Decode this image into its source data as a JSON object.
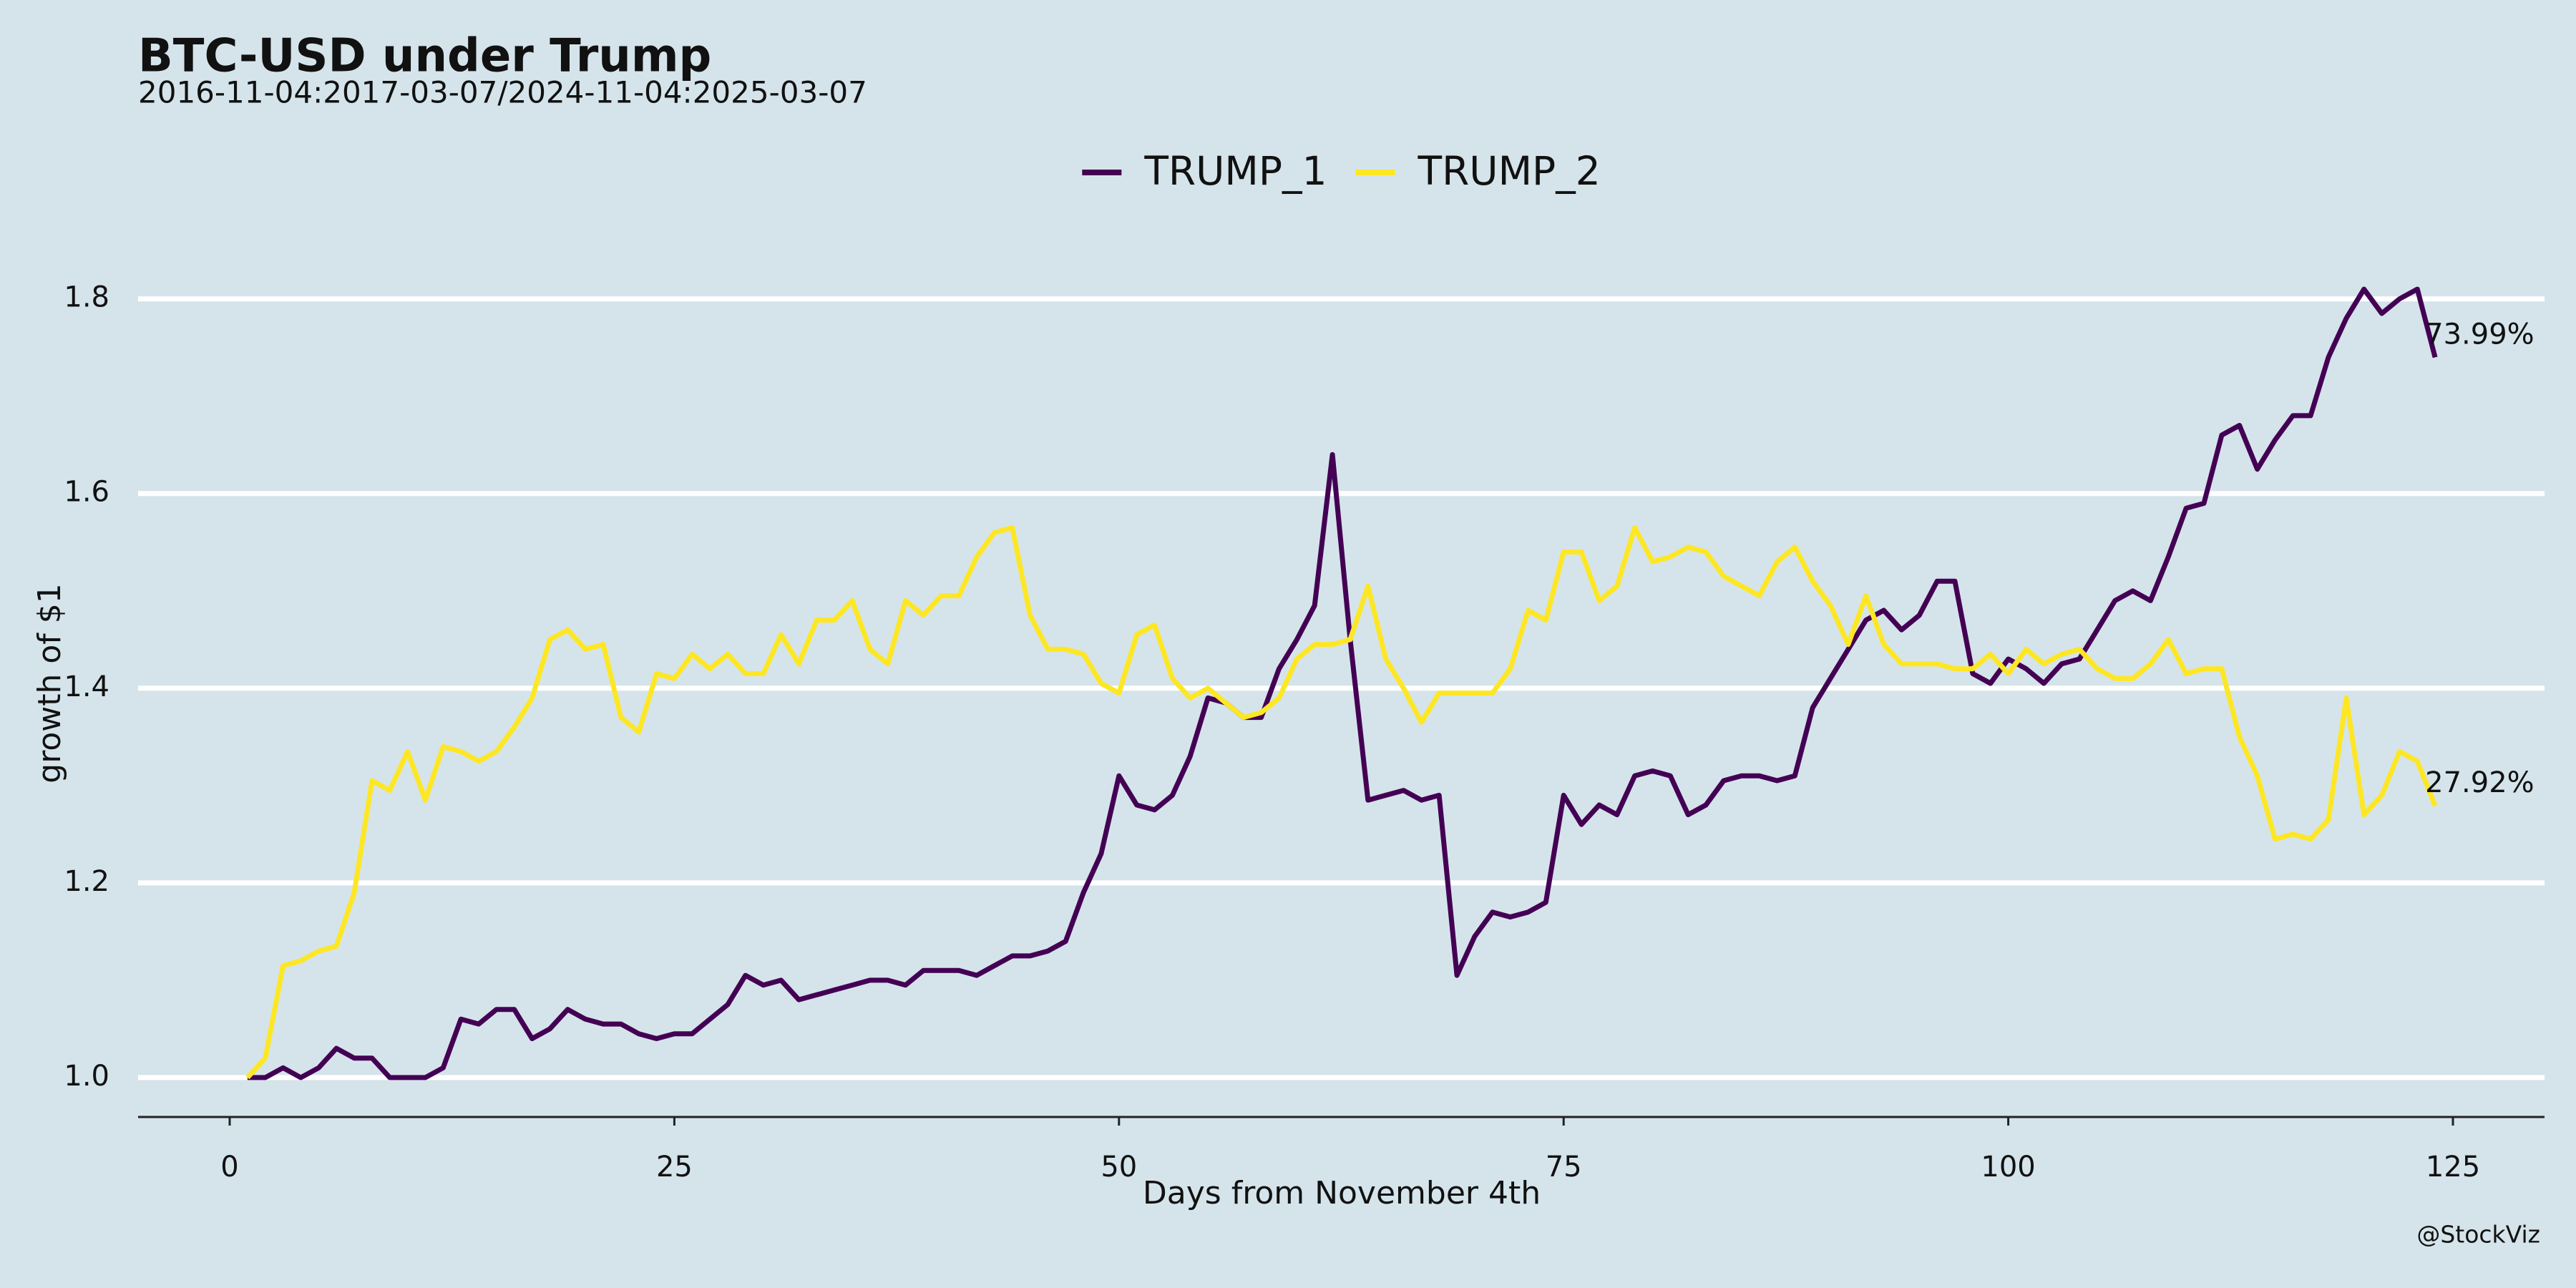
{
  "chart_data": {
    "type": "line",
    "title": "BTC-USD under Trump",
    "subtitle": "2016-11-04:2017-03-07/2024-11-04:2025-03-07",
    "x_label": "Days from November 4th",
    "y_label": "growth of $1",
    "caption": "@StockViz",
    "legend_position": "top",
    "grid": true,
    "x": [
      1,
      2,
      3,
      4,
      5,
      6,
      7,
      8,
      9,
      10,
      11,
      12,
      13,
      14,
      15,
      16,
      17,
      18,
      19,
      20,
      21,
      22,
      23,
      24,
      25,
      26,
      27,
      28,
      29,
      30,
      31,
      32,
      33,
      34,
      35,
      36,
      37,
      38,
      39,
      40,
      41,
      42,
      43,
      44,
      45,
      46,
      47,
      48,
      49,
      50,
      51,
      52,
      53,
      54,
      55,
      56,
      57,
      58,
      59,
      60,
      61,
      62,
      63,
      64,
      65,
      66,
      67,
      68,
      69,
      70,
      71,
      72,
      73,
      74,
      75,
      76,
      77,
      78,
      79,
      80,
      81,
      82,
      83,
      84,
      85,
      86,
      87,
      88,
      89,
      90,
      91,
      92,
      93,
      94,
      95,
      96,
      97,
      98,
      99,
      100,
      101,
      102,
      103,
      104,
      105,
      106,
      107,
      108,
      109,
      110,
      111,
      112,
      113,
      114,
      115,
      116,
      117,
      118,
      119,
      120,
      121,
      122,
      123,
      124
    ],
    "series": [
      {
        "name": "TRUMP_1",
        "color": "#440154",
        "end_label": "73.99%",
        "values": [
          1.0,
          1.0,
          1.01,
          1.0,
          1.01,
          1.03,
          1.02,
          1.02,
          1.0,
          1.0,
          1.0,
          1.01,
          1.06,
          1.055,
          1.07,
          1.07,
          1.04,
          1.05,
          1.07,
          1.06,
          1.055,
          1.055,
          1.045,
          1.04,
          1.045,
          1.045,
          1.06,
          1.075,
          1.105,
          1.095,
          1.1,
          1.08,
          1.085,
          1.09,
          1.095,
          1.1,
          1.1,
          1.095,
          1.11,
          1.11,
          1.11,
          1.105,
          1.115,
          1.125,
          1.125,
          1.13,
          1.14,
          1.19,
          1.23,
          1.31,
          1.28,
          1.275,
          1.29,
          1.33,
          1.39,
          1.385,
          1.37,
          1.37,
          1.42,
          1.45,
          1.485,
          1.64,
          1.45,
          1.285,
          1.29,
          1.295,
          1.285,
          1.29,
          1.105,
          1.145,
          1.17,
          1.165,
          1.17,
          1.18,
          1.29,
          1.26,
          1.28,
          1.27,
          1.31,
          1.315,
          1.31,
          1.27,
          1.28,
          1.305,
          1.31,
          1.31,
          1.305,
          1.31,
          1.38,
          1.41,
          1.44,
          1.47,
          1.48,
          1.46,
          1.475,
          1.51,
          1.51,
          1.415,
          1.405,
          1.43,
          1.42,
          1.405,
          1.425,
          1.43,
          1.46,
          1.49,
          1.5,
          1.49,
          1.535,
          1.585,
          1.59,
          1.66,
          1.67,
          1.625,
          1.655,
          1.68,
          1.68,
          1.74,
          1.78,
          1.81,
          1.785,
          1.8,
          1.81,
          1.7399
        ]
      },
      {
        "name": "TRUMP_2",
        "color": "#FDE725",
        "end_label": "27.92%",
        "values": [
          1.0,
          1.02,
          1.115,
          1.12,
          1.13,
          1.135,
          1.19,
          1.305,
          1.295,
          1.335,
          1.285,
          1.34,
          1.335,
          1.325,
          1.335,
          1.36,
          1.39,
          1.45,
          1.46,
          1.44,
          1.445,
          1.37,
          1.355,
          1.415,
          1.41,
          1.435,
          1.42,
          1.435,
          1.415,
          1.415,
          1.455,
          1.425,
          1.47,
          1.47,
          1.49,
          1.44,
          1.425,
          1.49,
          1.475,
          1.495,
          1.495,
          1.535,
          1.56,
          1.565,
          1.475,
          1.44,
          1.44,
          1.435,
          1.405,
          1.395,
          1.455,
          1.465,
          1.41,
          1.39,
          1.4,
          1.385,
          1.37,
          1.375,
          1.39,
          1.43,
          1.445,
          1.445,
          1.45,
          1.505,
          1.43,
          1.4,
          1.365,
          1.395,
          1.395,
          1.395,
          1.395,
          1.42,
          1.48,
          1.47,
          1.54,
          1.54,
          1.49,
          1.505,
          1.565,
          1.53,
          1.535,
          1.545,
          1.54,
          1.515,
          1.505,
          1.495,
          1.53,
          1.545,
          1.51,
          1.485,
          1.445,
          1.495,
          1.445,
          1.425,
          1.425,
          1.425,
          1.42,
          1.42,
          1.435,
          1.415,
          1.44,
          1.425,
          1.435,
          1.44,
          1.42,
          1.41,
          1.41,
          1.425,
          1.45,
          1.415,
          1.42,
          1.42,
          1.35,
          1.31,
          1.245,
          1.25,
          1.245,
          1.265,
          1.39,
          1.27,
          1.29,
          1.335,
          1.325,
          1.2792
        ]
      }
    ],
    "xlim": [
      -5.15,
      130.15
    ],
    "xticks": [
      0,
      25,
      50,
      75,
      100,
      125
    ],
    "ylim": [
      0.9595,
      1.8505
    ],
    "yticks": [
      {
        "value": 1,
        "label": "1.0"
      },
      1.2,
      1.4,
      1.6,
      1.8
    ]
  }
}
